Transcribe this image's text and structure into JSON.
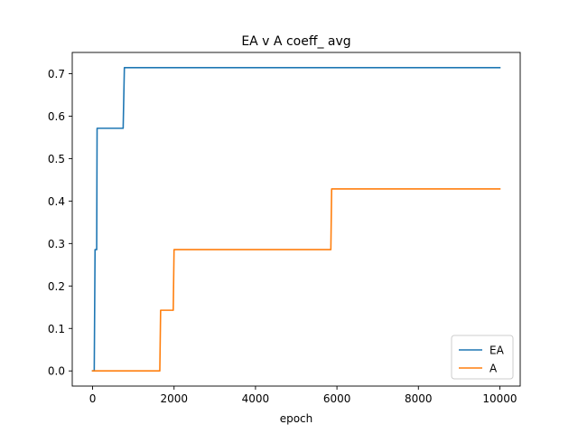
{
  "chart_data": {
    "type": "line",
    "title": "EA v A coeff_ avg",
    "xlabel": "epoch",
    "ylabel": "",
    "xlim": [
      -500,
      10500
    ],
    "ylim": [
      -0.0357,
      0.75
    ],
    "xticks": [
      0,
      2000,
      4000,
      6000,
      8000,
      10000
    ],
    "xtick_labels": [
      "0",
      "2000",
      "4000",
      "6000",
      "8000",
      "10000"
    ],
    "yticks": [
      0.0,
      0.1,
      0.2,
      0.3,
      0.4,
      0.5,
      0.6,
      0.7
    ],
    "ytick_labels": [
      "0.0",
      "0.1",
      "0.2",
      "0.3",
      "0.4",
      "0.5",
      "0.6",
      "0.7"
    ],
    "grid": false,
    "legend_position": "lower-right",
    "series": [
      {
        "name": "EA",
        "color": "#1f77b4",
        "x": [
          0,
          40,
          60,
          100,
          110,
          120,
          750,
          780,
          10000
        ],
        "y": [
          0.0,
          0.0,
          0.2857,
          0.2857,
          0.5714,
          0.5714,
          0.5714,
          0.7143,
          0.7143
        ]
      },
      {
        "name": "A",
        "color": "#ff7f0e",
        "x": [
          0,
          1650,
          1670,
          1980,
          2000,
          5850,
          5870,
          10000
        ],
        "y": [
          0.0,
          0.0,
          0.1429,
          0.1429,
          0.2857,
          0.2857,
          0.4286,
          0.4286
        ]
      }
    ]
  }
}
